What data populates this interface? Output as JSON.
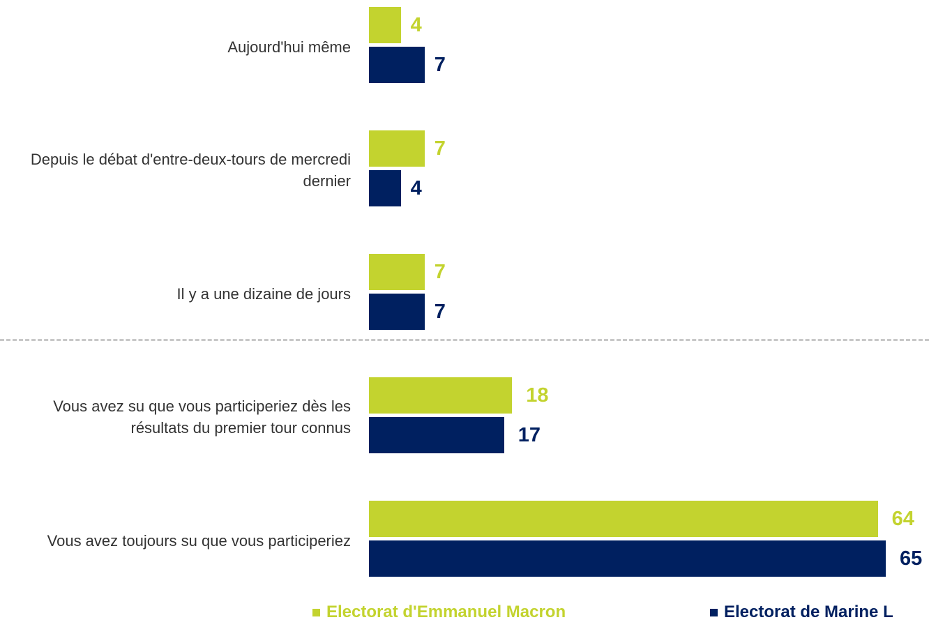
{
  "chart_data": {
    "type": "bar",
    "orientation": "horizontal",
    "categories": [
      "Aujourd'hui même",
      "Depuis le débat d'entre-deux-tours de mercredi dernier",
      "Il y a une dizaine de jours",
      "Vous avez su que vous participeriez dès les résultats du premier tour connus",
      "Vous avez toujours su que vous participeriez"
    ],
    "series": [
      {
        "name": "Electorat d'Emmanuel Macron",
        "color": "#c3d32f",
        "values": [
          4,
          7,
          7,
          18,
          64
        ]
      },
      {
        "name": "Electorat de Marine L",
        "color": "#002060",
        "values": [
          7,
          4,
          7,
          17,
          65
        ]
      }
    ]
  }
}
